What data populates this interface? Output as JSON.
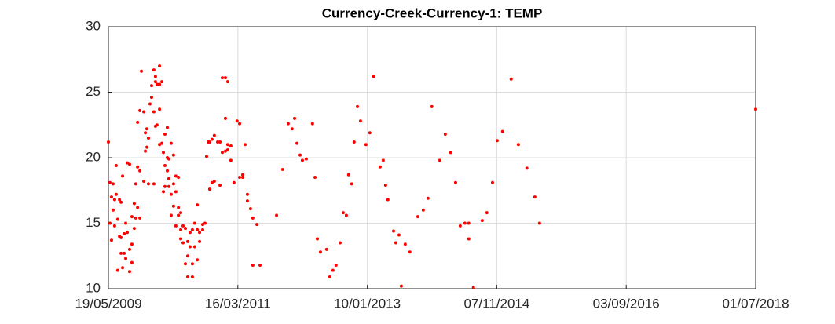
{
  "chart_data": {
    "type": "scatter",
    "title": "Currency-Creek-Currency-1: TEMP",
    "color": "#ff0000",
    "grid": true,
    "xlim": [
      "19/05/2009",
      "01/07/2018"
    ],
    "xticks": [
      "19/05/2009",
      "16/03/2011",
      "10/01/2013",
      "07/11/2014",
      "03/09/2016",
      "01/07/2018"
    ],
    "ylim": [
      10,
      30
    ],
    "yticks": [
      10,
      15,
      20,
      25,
      30
    ],
    "x": [
      "19/05/2009",
      "27/05/2009",
      "27/05/2009",
      "04/06/2009",
      "04/06/2009",
      "12/06/2009",
      "12/06/2009",
      "20/06/2009",
      "20/06/2009",
      "28/06/2009",
      "28/06/2009",
      "06/07/2009",
      "06/07/2009",
      "15/07/2009",
      "15/07/2009",
      "23/07/2009",
      "23/07/2009",
      "23/07/2009",
      "31/07/2009",
      "31/07/2009",
      "08/08/2009",
      "08/08/2009",
      "16/08/2009",
      "16/08/2009",
      "24/08/2009",
      "24/08/2009",
      "05/09/2009",
      "05/09/2009",
      "05/09/2009",
      "17/09/2009",
      "17/09/2009",
      "17/09/2009",
      "29/09/2009",
      "29/09/2009",
      "07/10/2009",
      "07/10/2009",
      "16/10/2009",
      "16/10/2009",
      "16/10/2009",
      "28/10/2009",
      "28/10/2009",
      "28/10/2009",
      "05/11/2009",
      "17/11/2009",
      "17/11/2009",
      "25/11/2009",
      "25/11/2009",
      "03/12/2009",
      "03/12/2009",
      "11/12/2009",
      "11/12/2009",
      "19/12/2009",
      "27/12/2009",
      "27/12/2009",
      "08/01/2010",
      "08/01/2010",
      "08/01/2010",
      "16/01/2010",
      "16/01/2010",
      "16/01/2010",
      "24/01/2010",
      "24/01/2010",
      "06/02/2010",
      "06/02/2010",
      "06/02/2010",
      "06/02/2010",
      "18/02/2010",
      "18/02/2010",
      "26/02/2010",
      "26/02/2010",
      "06/03/2010",
      "06/03/2010",
      "06/03/2010",
      "18/03/2010",
      "18/03/2010",
      "18/03/2010",
      "26/03/2010",
      "26/03/2010",
      "26/03/2010",
      "07/04/2010",
      "07/04/2010",
      "07/04/2010",
      "19/04/2010",
      "19/04/2010",
      "19/04/2010",
      "01/05/2010",
      "01/05/2010",
      "01/05/2010",
      "14/05/2010",
      "14/05/2010",
      "14/05/2010",
      "26/05/2010",
      "26/05/2010",
      "26/05/2010",
      "07/06/2010",
      "07/06/2010",
      "19/06/2010",
      "19/06/2010",
      "01/07/2010",
      "01/07/2010",
      "01/07/2010",
      "13/07/2010",
      "13/07/2010",
      "25/07/2010",
      "25/07/2010",
      "25/07/2010",
      "06/08/2010",
      "06/08/2010",
      "19/08/2010",
      "19/08/2010",
      "19/08/2010",
      "31/08/2010",
      "31/08/2010",
      "16/09/2010",
      "16/09/2010",
      "28/09/2010",
      "06/10/2010",
      "14/10/2010",
      "22/10/2010",
      "22/10/2010",
      "03/11/2010",
      "03/11/2010",
      "15/11/2010",
      "15/11/2010",
      "02/12/2010",
      "14/12/2010",
      "14/12/2010",
      "26/12/2010",
      "26/12/2010",
      "11/01/2011",
      "11/01/2011",
      "11/01/2011",
      "23/01/2011",
      "23/01/2011",
      "23/01/2011",
      "08/02/2011",
      "08/02/2011",
      "24/02/2011",
      "12/03/2011",
      "25/03/2011",
      "25/03/2011",
      "10/04/2011",
      "10/04/2011",
      "22/04/2011",
      "04/05/2011",
      "04/05/2011",
      "20/05/2011",
      "01/06/2011",
      "01/06/2011",
      "22/06/2011",
      "08/07/2011",
      "01/10/2011",
      "02/11/2011",
      "30/11/2011",
      "20/12/2011",
      "02/01/2012",
      "14/01/2012",
      "30/01/2012",
      "11/02/2012",
      "02/03/2012",
      "03/04/2012",
      "16/04/2012",
      "28/04/2012",
      "14/05/2012",
      "15/06/2012",
      "01/07/2012",
      "17/07/2012",
      "02/08/2012",
      "23/08/2012",
      "08/09/2012",
      "24/09/2012",
      "06/10/2012",
      "22/10/2012",
      "03/11/2012",
      "20/11/2012",
      "06/12/2012",
      "03/01/2013",
      "23/01/2013",
      "12/02/2013",
      "17/03/2013",
      "02/04/2013",
      "14/04/2013",
      "26/04/2013",
      "25/05/2013",
      "06/06/2013",
      "22/06/2013",
      "04/07/2013",
      "24/07/2013",
      "17/08/2013",
      "27/09/2013",
      "25/10/2013",
      "18/11/2013",
      "08/12/2013",
      "18/01/2014",
      "15/02/2014",
      "15/03/2014",
      "09/04/2014",
      "03/05/2014",
      "27/05/2014",
      "16/06/2014",
      "16/06/2014",
      "10/07/2014",
      "24/08/2014",
      "17/09/2014",
      "16/10/2014",
      "09/11/2014",
      "07/12/2014",
      "20/01/2015",
      "26/02/2015",
      "11/04/2015",
      "22/05/2015",
      "15/06/2015",
      "01/07/2018"
    ],
    "values": [
      21.2,
      18.1,
      15,
      17,
      13.7,
      16,
      18,
      14.8,
      16.8,
      19.4,
      17.2,
      11.4,
      15.3,
      14,
      16.8,
      12.7,
      13.9,
      16.6,
      18.6,
      11.6,
      12.7,
      14.2,
      15,
      12.3,
      19.6,
      14.3,
      19.5,
      13,
      11.3,
      13.4,
      12,
      15.5,
      16.5,
      14.6,
      18,
      15.4,
      19.3,
      22.7,
      16.2,
      23.6,
      19,
      15.4,
      26.6,
      23.5,
      18.2,
      21.9,
      20.5,
      22.2,
      20.8,
      21.5,
      18,
      24.1,
      24.6,
      25.5,
      23.5,
      18,
      26.7,
      26.2,
      25.8,
      22.4,
      25.6,
      22.5,
      27,
      25.6,
      21,
      23.7,
      25.8,
      21.1,
      20.4,
      17.4,
      21.8,
      17.8,
      19.4,
      22.3,
      19,
      20,
      19.9,
      18.4,
      17.8,
      21.1,
      17.2,
      15.6,
      20.2,
      18,
      16.3,
      18.6,
      14.8,
      17.4,
      16.2,
      15.6,
      18.5,
      14.5,
      13.8,
      15.8,
      13.5,
      14.8,
      14.6,
      11.9,
      13.6,
      12.5,
      10.9,
      14.3,
      13.2,
      14.5,
      11.9,
      10.9,
      13.2,
      15,
      12.2,
      16.4,
      14.5,
      14.3,
      13.6,
      14.5,
      14.9,
      15,
      20.1,
      21.2,
      17.6,
      21.2,
      18.1,
      21.4,
      18.2,
      21.7,
      21.2,
      17.9,
      21.2,
      26.1,
      20.4,
      26.1,
      23,
      20.5,
      25.8,
      21,
      20.6,
      19.8,
      20.9,
      18.1,
      22.8,
      22.6,
      18.5,
      18.7,
      18.5,
      21,
      17.2,
      16.7,
      16.1,
      15.4,
      11.8,
      14.9,
      11.8,
      15.6,
      19.1,
      22.6,
      22.2,
      23,
      21.1,
      20.2,
      19.8,
      19.9,
      22.6,
      18.5,
      13.8,
      12.8,
      13,
      10.9,
      11.4,
      11.8,
      13.5,
      15.8,
      15.6,
      18.7,
      18,
      21.2,
      23.9,
      22.8,
      21,
      21.9,
      26.2,
      19.3,
      19.8,
      17.9,
      16.8,
      14.4,
      13.5,
      14.1,
      10.2,
      13.4,
      12.8,
      15.5,
      16,
      16.9,
      23.9,
      19.8,
      21.8,
      20.4,
      18.1,
      14.8,
      15,
      15,
      13.8,
      10.1,
      15.2,
      15.8,
      18.1,
      21.3,
      22,
      26,
      21,
      19.2,
      17,
      15,
      23.7
    ]
  }
}
